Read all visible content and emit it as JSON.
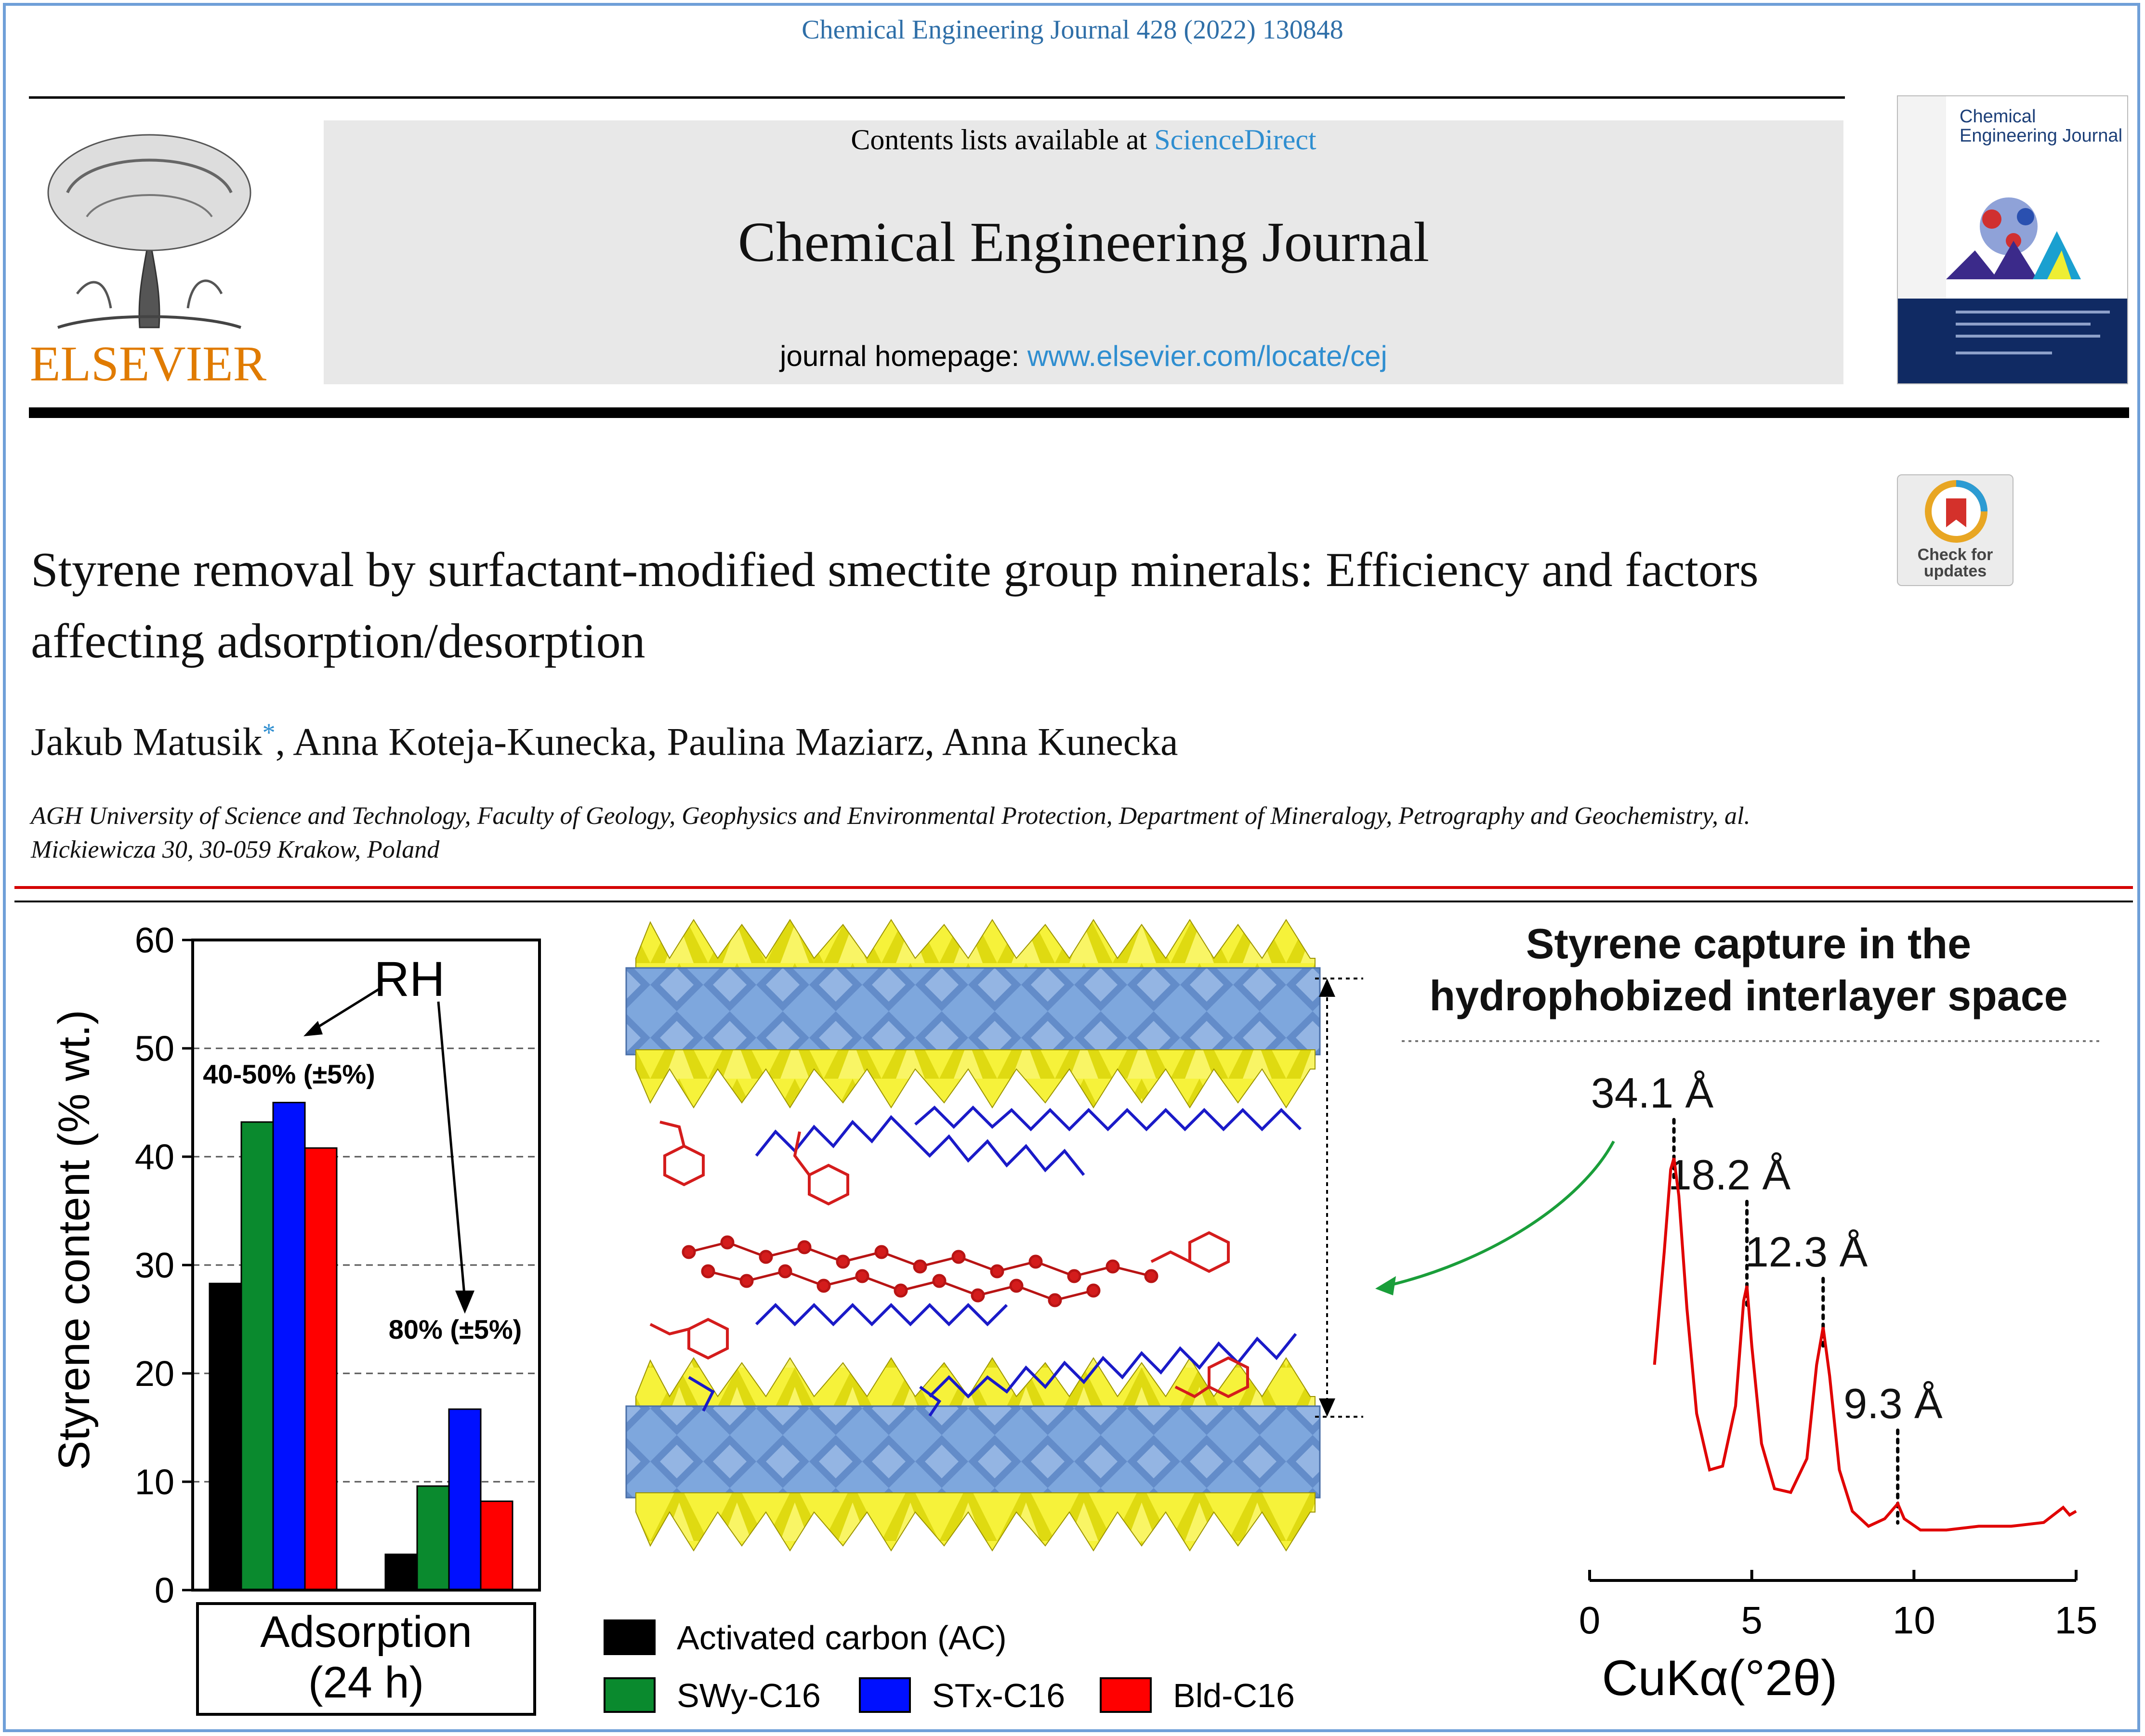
{
  "header": {
    "citation": "Chemical Engineering Journal 428 (2022) 130848",
    "contents_prefix": "Contents lists available at ",
    "contents_link": "ScienceDirect",
    "journal_name": "Chemical Engineering Journal",
    "homepage_prefix": "journal homepage: ",
    "homepage_link": "www.elsevier.com/locate/cej",
    "publisher": "ELSEVIER",
    "cover_title": "Chemical Engineering Journal",
    "check_updates": "Check for updates"
  },
  "article": {
    "title": "Styrene removal by surfactant-modified smectite group minerals: Efficiency and factors affecting adsorption/desorption",
    "authors": [
      "Jakub Matusik",
      "Anna Koteja-Kunecka",
      "Paulina Maziarz",
      "Anna Kunecka"
    ],
    "corresponding_mark": "*",
    "affiliation": "AGH University of Science and Technology, Faculty of Geology, Geophysics and Environmental Protection, Department of Mineralogy, Petrography and Geochemistry, al. Mickiewicza 30, 30-059 Krakow, Poland"
  },
  "colors": {
    "link": "#2f8ed0",
    "publisher": "#e07b00",
    "red_rule": "#d40000",
    "ac": "#000000",
    "swy": "#0a8a2e",
    "stx": "#0010ff",
    "bid": "#ff0000",
    "xrd_line": "#e00000",
    "arrow_green": "#1a9e3a"
  },
  "chart_data": [
    {
      "type": "bar",
      "ylabel": "Styrene content (% wt.)",
      "ylim": [
        0,
        60
      ],
      "yticks": [
        "0",
        "10",
        "20",
        "30",
        "40",
        "50",
        "60"
      ],
      "grid": "dashed horizontal at 10, 20, 30, 40, 50",
      "categories": [
        "40-50% (±5%)",
        "80% (±5%)"
      ],
      "series": [
        {
          "name": "Activated carbon (AC)",
          "values": [
            28.3,
            3.3
          ]
        },
        {
          "name": "SWy-C16",
          "values": [
            43.2,
            9.6
          ]
        },
        {
          "name": "STx-C16",
          "values": [
            45.0,
            16.7
          ]
        },
        {
          "name": "Bld-C16",
          "values": [
            40.8,
            8.2
          ]
        }
      ],
      "annotation": "RH",
      "category_box": "Adsorption (24 h)",
      "category_box_line1": "Adsorption",
      "category_box_line2": "(24 h)"
    },
    {
      "type": "line",
      "title": "Styrene capture in the hydrophobized interlayer space",
      "title_line1": "Styrene capture in the",
      "title_line2": "hydrophobized interlayer space",
      "xlabel": "CuKα(°2θ)",
      "xlim": [
        0,
        15
      ],
      "xticks": [
        "0",
        "5",
        "10",
        "15"
      ],
      "peaks": [
        {
          "x": 2.6,
          "label": "34.1 Å"
        },
        {
          "x": 4.85,
          "label": "18.2 Å"
        },
        {
          "x": 7.2,
          "label": "12.3 Å"
        },
        {
          "x": 9.5,
          "label": "9.3 Å"
        }
      ],
      "trace": [
        [
          2.0,
          0.45
        ],
        [
          2.3,
          0.75
        ],
        [
          2.5,
          0.97
        ],
        [
          2.6,
          1.0
        ],
        [
          2.75,
          0.9
        ],
        [
          3.0,
          0.6
        ],
        [
          3.3,
          0.32
        ],
        [
          3.7,
          0.17
        ],
        [
          4.1,
          0.18
        ],
        [
          4.5,
          0.34
        ],
        [
          4.75,
          0.62
        ],
        [
          4.85,
          0.66
        ],
        [
          5.0,
          0.5
        ],
        [
          5.3,
          0.24
        ],
        [
          5.7,
          0.12
        ],
        [
          6.2,
          0.11
        ],
        [
          6.7,
          0.2
        ],
        [
          7.0,
          0.45
        ],
        [
          7.2,
          0.55
        ],
        [
          7.4,
          0.42
        ],
        [
          7.7,
          0.17
        ],
        [
          8.1,
          0.06
        ],
        [
          8.6,
          0.02
        ],
        [
          9.1,
          0.04
        ],
        [
          9.4,
          0.07
        ],
        [
          9.5,
          0.08
        ],
        [
          9.7,
          0.04
        ],
        [
          10.2,
          0.01
        ],
        [
          11.0,
          0.01
        ],
        [
          12.0,
          0.02
        ],
        [
          13.0,
          0.02
        ],
        [
          14.0,
          0.03
        ],
        [
          14.3,
          0.05
        ],
        [
          14.6,
          0.07
        ],
        [
          14.8,
          0.05
        ],
        [
          15.0,
          0.06
        ]
      ]
    }
  ]
}
